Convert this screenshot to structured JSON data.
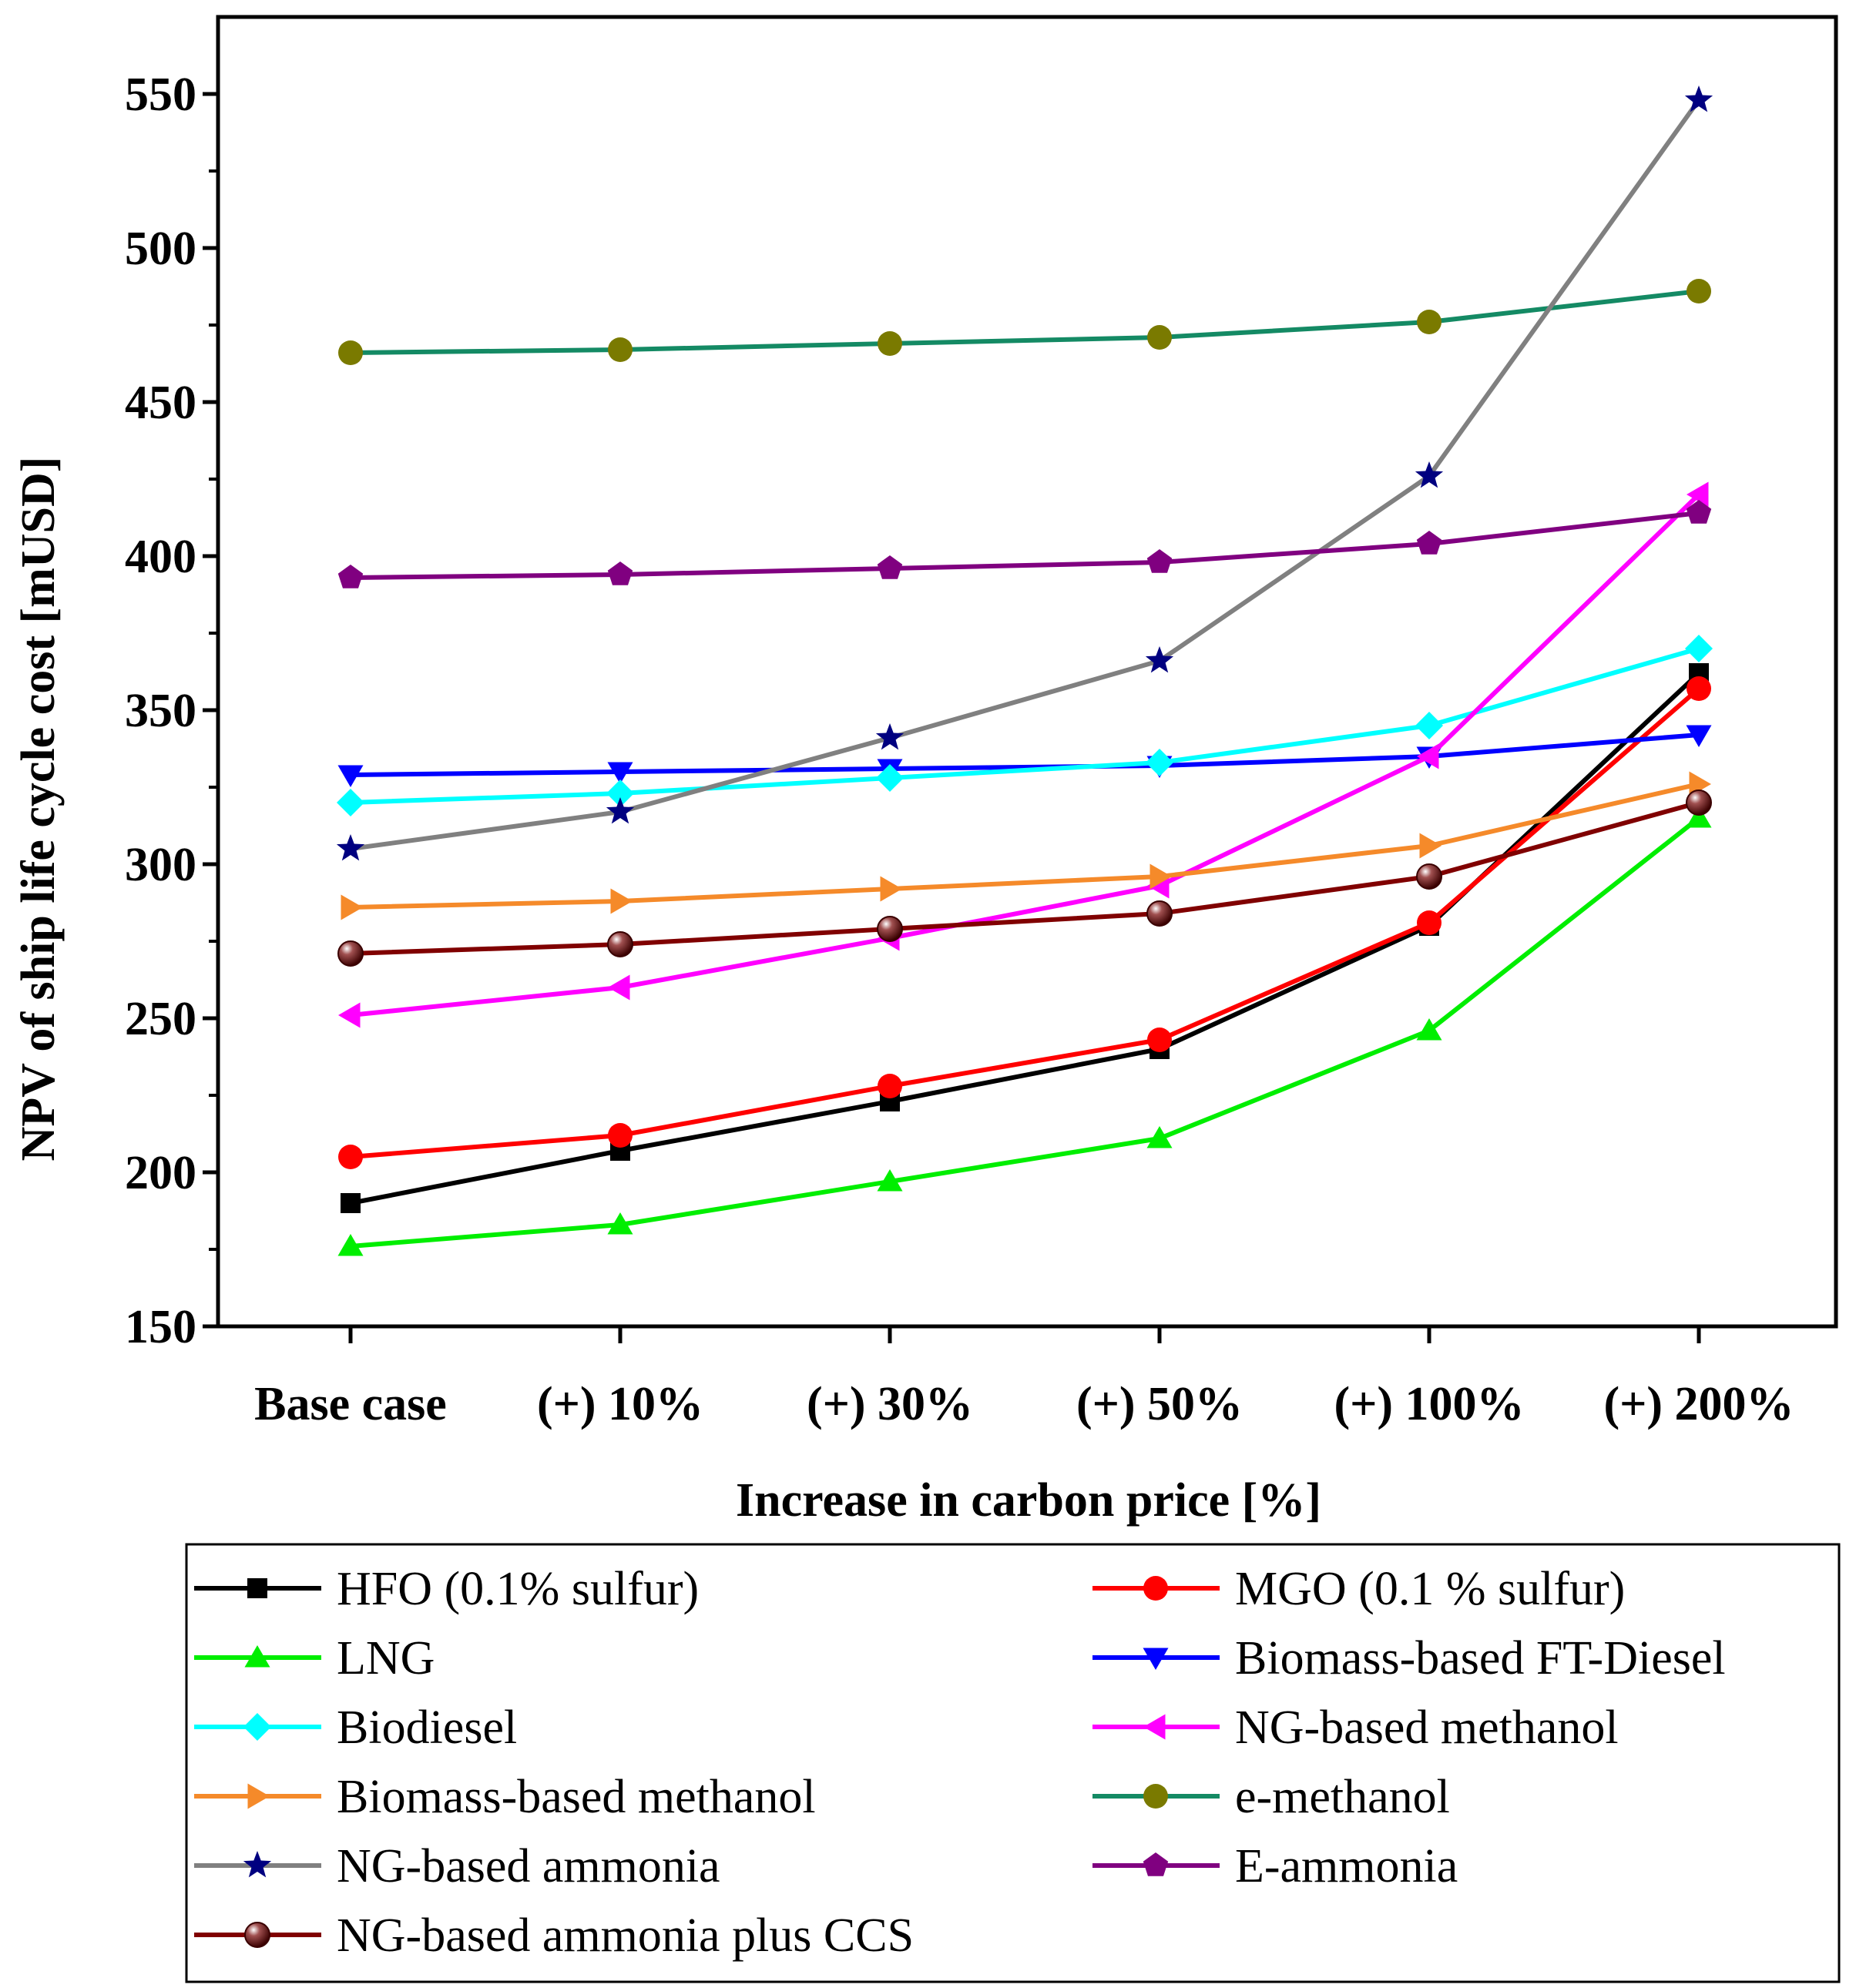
{
  "chart_data": {
    "type": "line",
    "title": "",
    "xlabel": "Increase in carbon price [%]",
    "ylabel": "NPV of ship life cycle cost [mUSD]",
    "categories": [
      "Base case",
      "(+) 10%",
      "(+) 30%",
      "(+) 50%",
      "(+) 100%",
      "(+) 200%"
    ],
    "ylim": [
      150,
      575
    ],
    "yticks": [
      150,
      200,
      250,
      300,
      350,
      400,
      450,
      500,
      550
    ],
    "grid": false,
    "legend_position": "bottom",
    "series": [
      {
        "name": "HFO (0.1% sulfur)",
        "color": "#000000",
        "marker": "square",
        "values": [
          190,
          207,
          223,
          240,
          280,
          362
        ]
      },
      {
        "name": "MGO (0.1 % sulfur)",
        "color": "#ff0000",
        "marker": "circle",
        "values": [
          205,
          212,
          228,
          243,
          281,
          357
        ]
      },
      {
        "name": "LNG",
        "color": "#00ee00",
        "marker": "triangle-up",
        "values": [
          176,
          183,
          197,
          211,
          246,
          315
        ]
      },
      {
        "name": "Biomass-based FT-Diesel",
        "color": "#0000ff",
        "marker": "triangle-down",
        "values": [
          329,
          330,
          331,
          332,
          335,
          342
        ]
      },
      {
        "name": "Biodiesel",
        "color": "#00ffff",
        "marker": "diamond",
        "values": [
          320,
          323,
          328,
          333,
          345,
          370
        ]
      },
      {
        "name": "NG-based methanol",
        "color": "#ff00ff",
        "marker": "triangle-left",
        "values": [
          251,
          260,
          276,
          293,
          335,
          420
        ]
      },
      {
        "name": "Biomass-based methanol",
        "color": "#f58a2a",
        "marker": "triangle-right",
        "values": [
          286,
          288,
          292,
          296,
          306,
          326
        ]
      },
      {
        "name": "e-methanol",
        "color": "#148a64",
        "marker": "circle",
        "values": [
          466,
          467,
          469,
          471,
          476,
          486
        ]
      },
      {
        "name": "NG-based ammonia",
        "color": "#808080",
        "marker": "star",
        "values": [
          305,
          317,
          341,
          366,
          426,
          548
        ]
      },
      {
        "name": "E-ammonia",
        "color": "#800080",
        "marker": "pentagon",
        "values": [
          393,
          394,
          396,
          398,
          404,
          414
        ]
      },
      {
        "name": "NG-based ammonia plus CCS",
        "color": "#800000",
        "marker": "sphere",
        "values": [
          271,
          274,
          279,
          284,
          296,
          320
        ]
      }
    ],
    "marker_colors": {
      "e-methanol": "#7a7a00",
      "NG-based ammonia": "#000080"
    }
  }
}
